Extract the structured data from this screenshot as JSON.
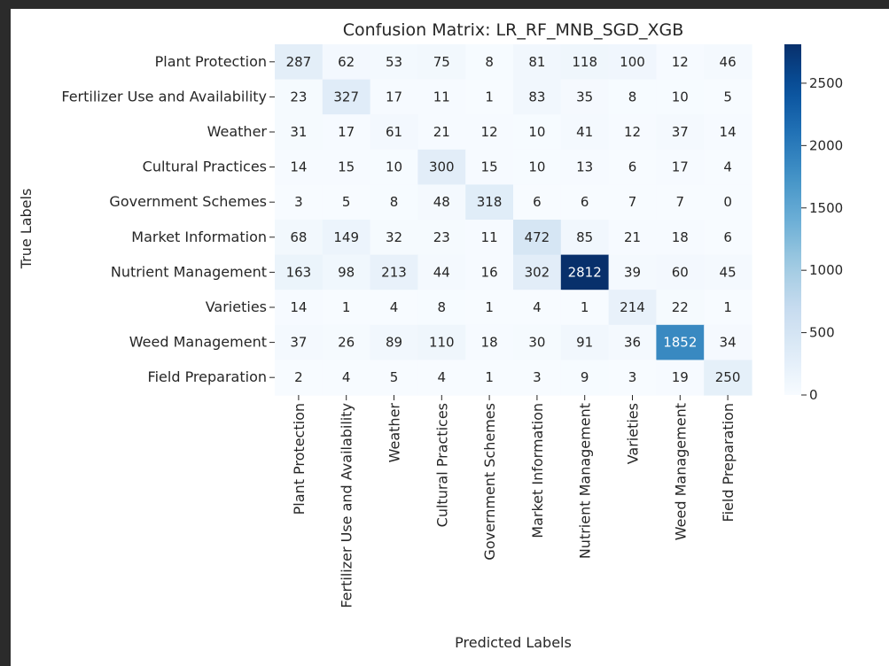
{
  "chart_data": {
    "type": "heatmap",
    "title": "Confusion Matrix: LR_RF_MNB_SGD_XGB",
    "xlabel": "Predicted Labels",
    "ylabel": "True Labels",
    "labels": [
      "Plant Protection",
      "Fertilizer Use and Availability",
      "Weather",
      "Cultural Practices",
      "Government Schemes",
      "Market Information",
      "Nutrient Management",
      "Varieties",
      "Weed Management",
      "Field Preparation"
    ],
    "matrix": [
      [
        287,
        62,
        53,
        75,
        8,
        81,
        118,
        100,
        12,
        46
      ],
      [
        23,
        327,
        17,
        11,
        1,
        83,
        35,
        8,
        10,
        5
      ],
      [
        31,
        17,
        61,
        21,
        12,
        10,
        41,
        12,
        37,
        14
      ],
      [
        14,
        15,
        10,
        300,
        15,
        10,
        13,
        6,
        17,
        4
      ],
      [
        3,
        5,
        8,
        48,
        318,
        6,
        6,
        7,
        7,
        0
      ],
      [
        68,
        149,
        32,
        23,
        11,
        472,
        85,
        21,
        18,
        6
      ],
      [
        163,
        98,
        213,
        44,
        16,
        302,
        2812,
        39,
        60,
        45
      ],
      [
        14,
        1,
        4,
        8,
        1,
        4,
        1,
        214,
        22,
        1
      ],
      [
        37,
        26,
        89,
        110,
        18,
        30,
        91,
        36,
        1852,
        34
      ],
      [
        2,
        4,
        5,
        4,
        1,
        3,
        9,
        3,
        19,
        250
      ]
    ],
    "colormap": "Blues",
    "vmin": 0,
    "vmax": 2812,
    "colorbar_ticks": [
      0,
      500,
      1000,
      1500,
      2000,
      2500
    ],
    "annotate": true,
    "grid": false,
    "legend": "colorbar-right"
  }
}
